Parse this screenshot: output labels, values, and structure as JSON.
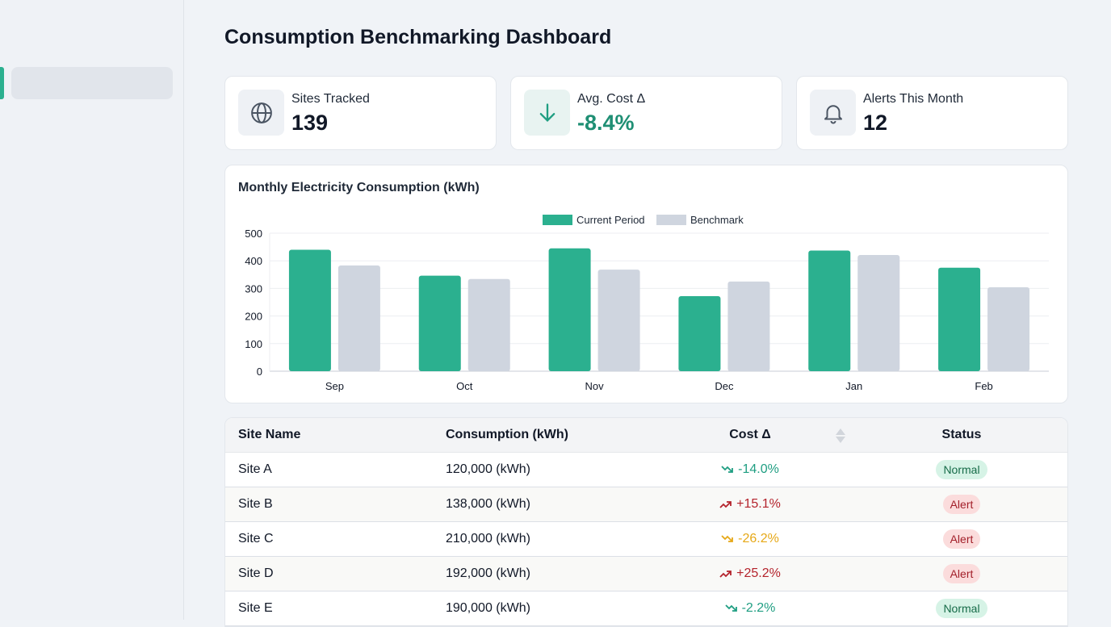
{
  "page": {
    "title": "Consumption Benchmarking Dashboard"
  },
  "colors": {
    "accent": "#2bb08f",
    "benchmark": "#cfd5df",
    "down_good": "#1f9e82",
    "up_bad": "#b4232c",
    "warning": "#e6a817"
  },
  "kpis": [
    {
      "label": "Sites Tracked",
      "value": "139",
      "icon": "globe-icon"
    },
    {
      "label": "Avg. Cost Δ",
      "value": "-8.4%",
      "icon": "arrow-down-icon"
    },
    {
      "label": "Alerts This Month",
      "value": "12",
      "icon": "bell-icon"
    }
  ],
  "chart_data": {
    "type": "bar",
    "title": "Monthly Electricity Consumption (kWh)",
    "categories": [
      "Sep",
      "Oct",
      "Nov",
      "Dec",
      "Jan",
      "Feb"
    ],
    "series": [
      {
        "name": "Current Period",
        "values": [
          440,
          346,
          445,
          272,
          437,
          375
        ]
      },
      {
        "name": "Benchmark",
        "values": [
          383,
          334,
          368,
          325,
          421,
          304
        ]
      }
    ],
    "yticks": [
      0,
      100,
      200,
      300,
      400,
      500
    ],
    "ylim": [
      0,
      500
    ],
    "grid": true,
    "legend": "top-center"
  },
  "table": {
    "headers": [
      "Site Name",
      "Consumption (kWh)",
      "Cost Δ",
      "Status"
    ],
    "rows": [
      {
        "site": "Site A",
        "consumption": "120,000 (kWh)",
        "cost": "-14.0%",
        "trend": "down",
        "tone": "good",
        "status": "Normal"
      },
      {
        "site": "Site B",
        "consumption": "138,000 (kWh)",
        "cost": "+15.1%",
        "trend": "up",
        "tone": "bad",
        "status": "Alert"
      },
      {
        "site": "Site C",
        "consumption": "210,000 (kWh)",
        "cost": "-26.2%",
        "trend": "down",
        "tone": "warn",
        "status": "Alert"
      },
      {
        "site": "Site D",
        "consumption": "192,000 (kWh)",
        "cost": "+25.2%",
        "trend": "up",
        "tone": "bad",
        "status": "Alert"
      },
      {
        "site": "Site E",
        "consumption": "190,000 (kWh)",
        "cost": "-2.2%",
        "trend": "down",
        "tone": "good",
        "status": "Normal"
      }
    ]
  }
}
